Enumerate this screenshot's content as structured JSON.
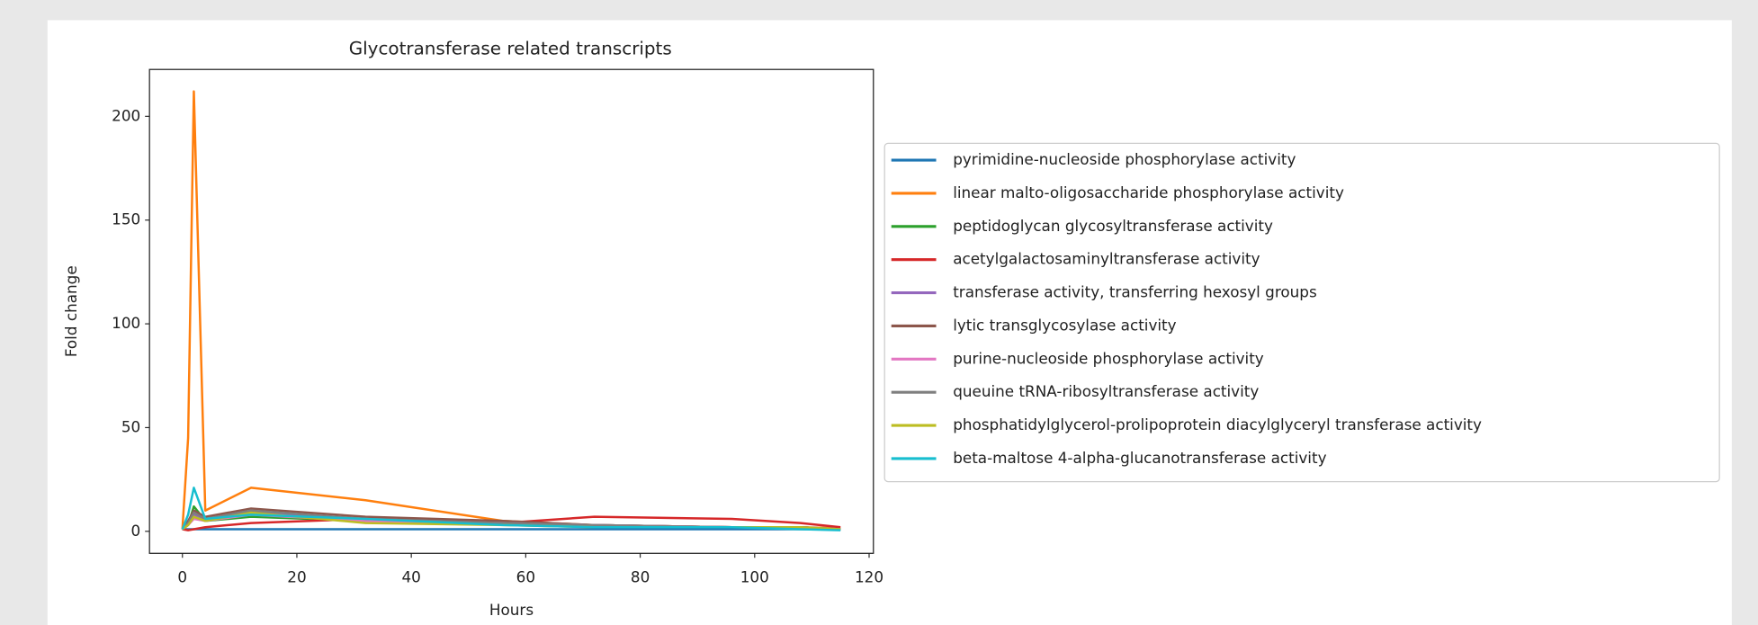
{
  "chart_data": {
    "type": "line",
    "title": "Glycotransferase related transcripts",
    "x_label": "Hours",
    "y_label": "Fold change",
    "x": [
      0,
      1,
      2,
      4,
      12,
      32,
      56,
      72,
      96,
      108,
      115
    ],
    "series": [
      {
        "name": "pyrimidine-nucleoside phosphorylase activity",
        "color": "#1f77b4",
        "values": [
          1,
          1,
          1,
          1,
          1,
          1,
          1,
          1,
          1,
          1,
          1
        ]
      },
      {
        "name": "linear malto-oligosaccharide phosphorylase activity",
        "color": "#ff7f0e",
        "values": [
          1,
          45,
          212,
          10,
          21,
          15,
          5,
          3,
          2,
          2,
          1.5
        ]
      },
      {
        "name": "peptidoglycan glycosyltransferase activity",
        "color": "#2ca02c",
        "values": [
          1,
          3,
          12,
          5,
          7,
          5,
          4,
          3,
          2,
          2,
          1
        ]
      },
      {
        "name": "acetylgalactosaminyltransferase activity",
        "color": "#d62728",
        "values": [
          1,
          0.5,
          1,
          2,
          4,
          6,
          4,
          7,
          6,
          4,
          2
        ]
      },
      {
        "name": "transferase activity, transferring hexosyl groups",
        "color": "#9467bd",
        "values": [
          1,
          4,
          8,
          6,
          9,
          6,
          4,
          3,
          2,
          2,
          1
        ]
      },
      {
        "name": "lytic transglycosylase activity",
        "color": "#8c564b",
        "values": [
          1,
          5,
          10,
          7,
          11,
          7,
          5,
          3,
          2,
          2,
          1
        ]
      },
      {
        "name": "purine-nucleoside phosphorylase activity",
        "color": "#e377c2",
        "values": [
          1,
          3,
          6,
          5,
          8,
          5,
          4,
          3,
          2,
          2,
          1
        ]
      },
      {
        "name": "queuine tRNA-ribosyltransferase activity",
        "color": "#7f7f7f",
        "values": [
          1,
          4,
          9,
          6,
          10,
          6,
          4,
          3,
          2,
          2,
          1
        ]
      },
      {
        "name": "phosphatidylglycerol-prolipoprotein diacylglyceryl transferase activity",
        "color": "#bcbd22",
        "values": [
          1,
          3,
          7,
          5,
          9,
          4,
          3,
          2,
          2,
          2,
          1
        ]
      },
      {
        "name": "beta-maltose 4-alpha-glucanotransferase activity",
        "color": "#17becf",
        "values": [
          1,
          8,
          21,
          6,
          8,
          6,
          3,
          2,
          2,
          1,
          0.5
        ]
      }
    ],
    "xlim": [
      -5.75,
      120.75
    ],
    "xticks": [
      0,
      20,
      40,
      60,
      80,
      100,
      120
    ],
    "ylim": [
      -10.6,
      222.6
    ],
    "yticks": [
      0,
      50,
      100,
      150,
      200
    ],
    "grid": false,
    "legend": "outside-right"
  }
}
